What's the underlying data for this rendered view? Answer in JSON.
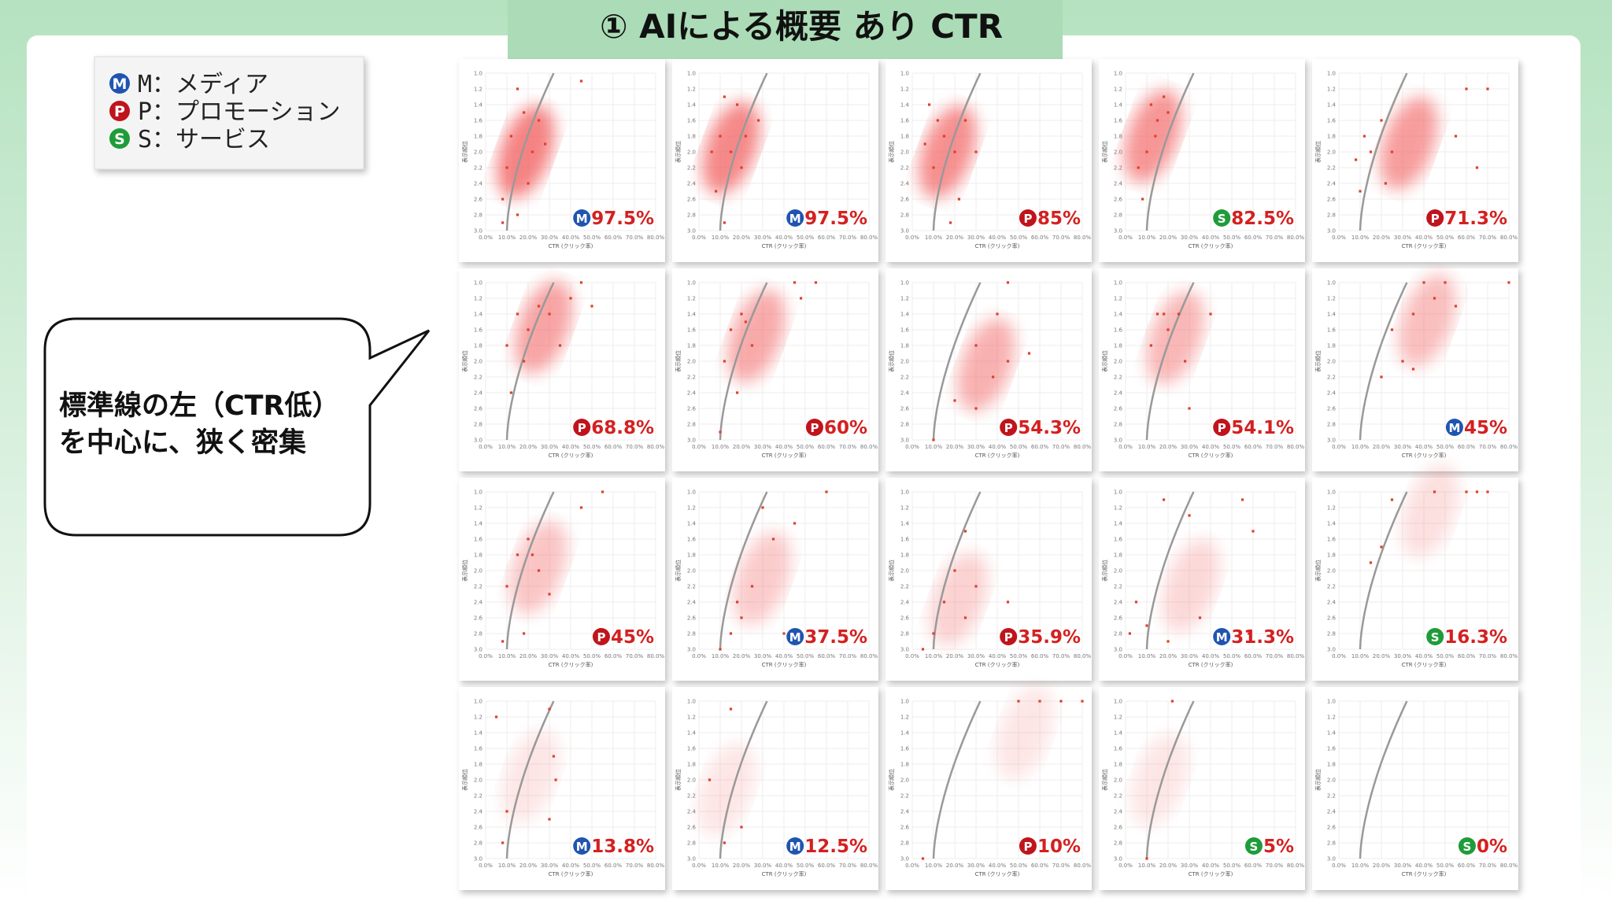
{
  "title": "① AIによる概要 あり CTR",
  "legend": [
    {
      "letter": "M",
      "label": "M：メディア",
      "color": "#1f55b0"
    },
    {
      "letter": "P",
      "label": "P：プロモーション",
      "color": "#c0141c"
    },
    {
      "letter": "S",
      "label": "S：サービス",
      "color": "#1e9c3a"
    }
  ],
  "callout": [
    "標準線の左（CTR低）",
    "を中心に、狭く密集"
  ],
  "axes": {
    "x_label": "CTR (クリック率)",
    "y_label": "表示順位",
    "xlim": [
      0,
      80
    ],
    "ylim": [
      1,
      3
    ],
    "xticks": [
      {
        "value": 0,
        "label": "0.0%"
      },
      {
        "value": 10,
        "label": "10.0%"
      },
      {
        "value": 20,
        "label": "20.0%"
      },
      {
        "value": 30,
        "label": "30.0%"
      },
      {
        "value": 40,
        "label": "40.0%"
      },
      {
        "value": 50,
        "label": "50.0%"
      },
      {
        "value": 60,
        "label": "60.0%"
      },
      {
        "value": 70,
        "label": "70.0%"
      },
      {
        "value": 80,
        "label": "80.0%"
      }
    ],
    "yticks": [
      {
        "value": 1,
        "label": "1.0"
      },
      1.2,
      1.4,
      1.6,
      1.8,
      {
        "value": 2,
        "label": "2.0"
      },
      2.2,
      2.4,
      2.6,
      2.8,
      {
        "value": 3,
        "label": "3.0"
      }
    ]
  },
  "share_color": "#d42020",
  "point_color": "#e0402a",
  "panels": [
    {
      "badge": "M",
      "share": "97.5%",
      "points": [
        [
          15,
          1.2
        ],
        [
          18,
          1.5
        ],
        [
          12,
          1.8
        ],
        [
          22,
          2.0
        ],
        [
          25,
          1.6
        ],
        [
          20,
          2.4
        ],
        [
          15,
          2.8
        ],
        [
          8,
          2.9
        ],
        [
          8,
          2.6
        ],
        [
          45,
          1.1
        ],
        [
          28,
          1.9
        ],
        [
          10,
          2.2
        ]
      ]
    },
    {
      "badge": "M",
      "share": "97.5%",
      "points": [
        [
          12,
          1.3
        ],
        [
          18,
          1.4
        ],
        [
          10,
          1.8
        ],
        [
          15,
          2.0
        ],
        [
          22,
          1.8
        ],
        [
          8,
          2.5
        ],
        [
          12,
          2.9
        ],
        [
          28,
          1.6
        ],
        [
          20,
          2.2
        ],
        [
          6,
          2.0
        ]
      ]
    },
    {
      "badge": "P",
      "share": "85%",
      "points": [
        [
          8,
          1.4
        ],
        [
          12,
          1.6
        ],
        [
          15,
          1.8
        ],
        [
          10,
          2.2
        ],
        [
          20,
          2.0
        ],
        [
          25,
          1.6
        ],
        [
          18,
          2.9
        ],
        [
          22,
          2.6
        ],
        [
          30,
          2.0
        ],
        [
          6,
          1.9
        ]
      ]
    },
    {
      "badge": "S",
      "share": "82.5%",
      "points": [
        [
          12,
          1.4
        ],
        [
          15,
          1.6
        ],
        [
          18,
          1.3
        ],
        [
          20,
          1.5
        ],
        [
          10,
          2.0
        ],
        [
          8,
          2.6
        ],
        [
          14,
          1.8
        ],
        [
          6,
          2.2
        ]
      ]
    },
    {
      "badge": "P",
      "share": "71.3%",
      "points": [
        [
          12,
          1.8
        ],
        [
          15,
          2.0
        ],
        [
          20,
          1.6
        ],
        [
          8,
          2.1
        ],
        [
          25,
          2.0
        ],
        [
          60,
          1.2
        ],
        [
          70,
          1.2
        ],
        [
          55,
          1.8
        ],
        [
          65,
          2.2
        ],
        [
          22,
          2.4
        ],
        [
          10,
          2.5
        ]
      ]
    },
    {
      "badge": "P",
      "share": "68.8%",
      "points": [
        [
          15,
          1.4
        ],
        [
          20,
          1.6
        ],
        [
          25,
          1.3
        ],
        [
          10,
          1.8
        ],
        [
          18,
          2.0
        ],
        [
          30,
          1.4
        ],
        [
          40,
          1.2
        ],
        [
          45,
          1.0
        ],
        [
          12,
          2.4
        ],
        [
          35,
          1.8
        ],
        [
          50,
          1.3
        ]
      ]
    },
    {
      "badge": "P",
      "share": "60%",
      "points": [
        [
          15,
          1.6
        ],
        [
          20,
          1.4
        ],
        [
          12,
          2.0
        ],
        [
          18,
          2.4
        ],
        [
          25,
          1.8
        ],
        [
          10,
          2.9
        ],
        [
          45,
          1.0
        ],
        [
          55,
          1.0
        ],
        [
          48,
          1.2
        ],
        [
          22,
          1.5
        ]
      ]
    },
    {
      "badge": "P",
      "share": "54.3%",
      "points": [
        [
          45,
          1.0
        ],
        [
          40,
          1.4
        ],
        [
          30,
          1.8
        ],
        [
          45,
          2.0
        ],
        [
          38,
          2.2
        ],
        [
          10,
          3.0
        ],
        [
          30,
          2.6
        ],
        [
          55,
          1.9
        ],
        [
          20,
          2.5
        ]
      ]
    },
    {
      "badge": "P",
      "share": "54.1%",
      "points": [
        [
          15,
          1.4
        ],
        [
          18,
          1.4
        ],
        [
          20,
          1.6
        ],
        [
          12,
          1.8
        ],
        [
          25,
          1.4
        ],
        [
          40,
          1.4
        ],
        [
          28,
          2.0
        ],
        [
          30,
          2.6
        ]
      ]
    },
    {
      "badge": "M",
      "share": "45%",
      "points": [
        [
          40,
          1.0
        ],
        [
          45,
          1.2
        ],
        [
          50,
          1.0
        ],
        [
          35,
          1.4
        ],
        [
          25,
          1.6
        ],
        [
          30,
          2.0
        ],
        [
          55,
          1.3
        ],
        [
          80,
          1.0
        ],
        [
          20,
          2.2
        ],
        [
          35,
          2.1
        ]
      ]
    },
    {
      "badge": "P",
      "share": "45%",
      "points": [
        [
          15,
          1.8
        ],
        [
          20,
          1.6
        ],
        [
          25,
          2.0
        ],
        [
          10,
          2.2
        ],
        [
          30,
          2.3
        ],
        [
          18,
          2.8
        ],
        [
          45,
          1.2
        ],
        [
          55,
          1.0
        ],
        [
          8,
          2.9
        ],
        [
          22,
          1.8
        ]
      ]
    },
    {
      "badge": "M",
      "share": "37.5%",
      "points": [
        [
          30,
          1.2
        ],
        [
          35,
          1.6
        ],
        [
          45,
          1.4
        ],
        [
          25,
          2.2
        ],
        [
          20,
          2.6
        ],
        [
          15,
          2.8
        ],
        [
          40,
          2.8
        ],
        [
          60,
          1.0
        ],
        [
          10,
          3.0
        ],
        [
          18,
          2.4
        ]
      ]
    },
    {
      "badge": "P",
      "share": "35.9%",
      "points": [
        [
          25,
          1.5
        ],
        [
          20,
          2.0
        ],
        [
          15,
          2.4
        ],
        [
          30,
          2.2
        ],
        [
          45,
          2.4
        ],
        [
          10,
          2.8
        ],
        [
          25,
          2.6
        ],
        [
          5,
          3.0
        ]
      ]
    },
    {
      "badge": "M",
      "share": "31.3%",
      "points": [
        [
          18,
          1.1
        ],
        [
          30,
          1.3
        ],
        [
          55,
          1.1
        ],
        [
          60,
          1.5
        ],
        [
          5,
          2.4
        ],
        [
          10,
          2.7
        ],
        [
          20,
          2.9
        ],
        [
          35,
          2.6
        ],
        [
          45,
          2.9
        ],
        [
          58,
          2.8
        ],
        [
          2,
          2.8
        ]
      ]
    },
    {
      "badge": "S",
      "share": "16.3%",
      "points": [
        [
          45,
          1.0
        ],
        [
          60,
          1.0
        ],
        [
          65,
          1.0
        ],
        [
          70,
          1.0
        ],
        [
          25,
          1.1
        ],
        [
          20,
          1.7
        ],
        [
          15,
          1.9
        ]
      ]
    },
    {
      "badge": "M",
      "share": "13.8%",
      "points": [
        [
          5,
          1.2
        ],
        [
          30,
          1.1
        ],
        [
          32,
          1.7
        ],
        [
          33,
          2.0
        ],
        [
          10,
          2.4
        ],
        [
          30,
          2.5
        ],
        [
          8,
          2.8
        ]
      ]
    },
    {
      "badge": "M",
      "share": "12.5%",
      "points": [
        [
          15,
          1.1
        ],
        [
          5,
          2.0
        ],
        [
          12,
          2.8
        ],
        [
          20,
          2.6
        ]
      ]
    },
    {
      "badge": "P",
      "share": "10%",
      "points": [
        [
          50,
          1.0
        ],
        [
          60,
          1.0
        ],
        [
          70,
          1.0
        ],
        [
          80,
          1.0
        ],
        [
          5,
          3.0
        ]
      ]
    },
    {
      "badge": "S",
      "share": "5%",
      "points": [
        [
          22,
          1.0
        ],
        [
          10,
          3.0
        ]
      ]
    },
    {
      "badge": "S",
      "share": "0%",
      "points": []
    }
  ]
}
